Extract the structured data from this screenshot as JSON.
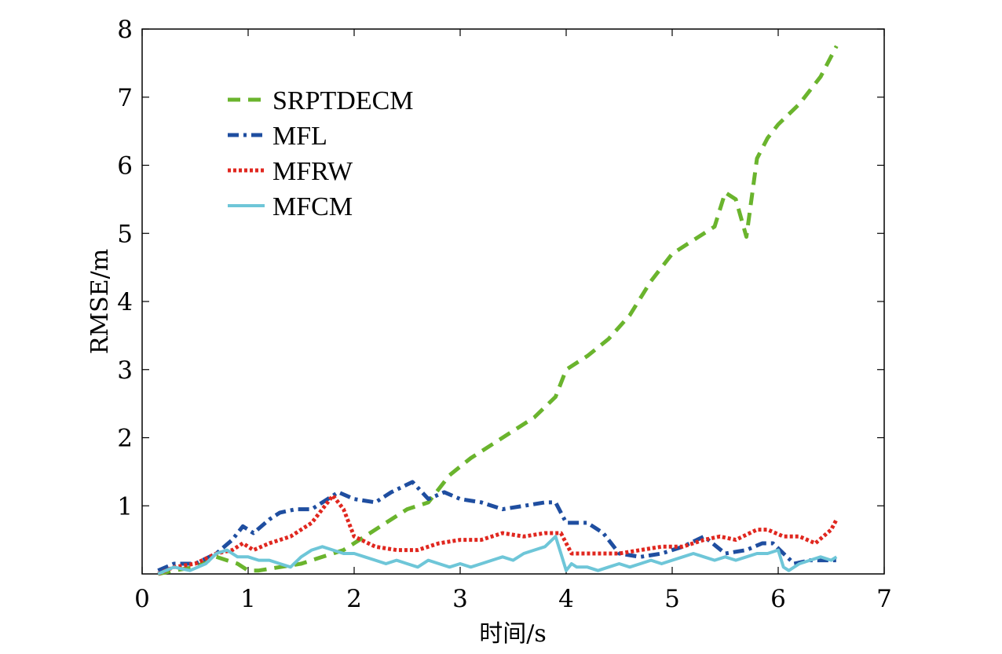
{
  "chart_data": {
    "type": "line",
    "title": "",
    "xlabel": "时间/s",
    "ylabel": "RMSE/m",
    "xlim": [
      0,
      7
    ],
    "ylim": [
      0,
      8
    ],
    "xticks": [
      "0",
      "1",
      "2",
      "3",
      "4",
      "5",
      "6",
      "7"
    ],
    "yticks": [
      "1",
      "2",
      "3",
      "4",
      "5",
      "6",
      "7",
      "8"
    ],
    "grid": false,
    "legend_position": "top-left",
    "series": [
      {
        "name": "SRPTDECM",
        "color": "#6ab42d",
        "dash": "dashed",
        "x": [
          0.15,
          0.3,
          0.5,
          0.7,
          0.9,
          1.0,
          1.1,
          1.3,
          1.5,
          1.7,
          1.9,
          2.1,
          2.3,
          2.5,
          2.7,
          2.9,
          3.1,
          3.3,
          3.5,
          3.7,
          3.9,
          4.0,
          4.2,
          4.4,
          4.6,
          4.8,
          5.0,
          5.2,
          5.4,
          5.5,
          5.6,
          5.7,
          5.8,
          5.9,
          6.0,
          6.2,
          6.4,
          6.55
        ],
        "y": [
          0.0,
          0.05,
          0.1,
          0.25,
          0.15,
          0.05,
          0.05,
          0.1,
          0.15,
          0.25,
          0.35,
          0.55,
          0.75,
          0.95,
          1.05,
          1.45,
          1.7,
          1.9,
          2.1,
          2.3,
          2.6,
          3.0,
          3.2,
          3.45,
          3.8,
          4.3,
          4.7,
          4.9,
          5.1,
          5.6,
          5.5,
          4.95,
          6.1,
          6.4,
          6.6,
          6.9,
          7.3,
          7.75
        ]
      },
      {
        "name": "MFL",
        "color": "#1f4ea0",
        "dash": "dashdot",
        "x": [
          0.15,
          0.3,
          0.5,
          0.7,
          0.85,
          0.95,
          1.05,
          1.2,
          1.3,
          1.45,
          1.6,
          1.75,
          1.85,
          2.0,
          2.2,
          2.35,
          2.55,
          2.7,
          2.85,
          3.0,
          3.2,
          3.4,
          3.6,
          3.8,
          3.9,
          4.0,
          4.2,
          4.35,
          4.5,
          4.7,
          4.9,
          5.1,
          5.3,
          5.5,
          5.7,
          5.85,
          5.95,
          6.05,
          6.15,
          6.3,
          6.55
        ],
        "y": [
          0.05,
          0.15,
          0.15,
          0.3,
          0.5,
          0.7,
          0.6,
          0.8,
          0.9,
          0.95,
          0.95,
          1.1,
          1.2,
          1.1,
          1.05,
          1.2,
          1.35,
          1.1,
          1.2,
          1.1,
          1.05,
          0.95,
          1.0,
          1.05,
          1.05,
          0.75,
          0.75,
          0.6,
          0.3,
          0.25,
          0.3,
          0.4,
          0.55,
          0.3,
          0.35,
          0.45,
          0.45,
          0.3,
          0.15,
          0.2,
          0.2
        ]
      },
      {
        "name": "MFRW",
        "color": "#e0271f",
        "dash": "dotted",
        "x": [
          0.15,
          0.3,
          0.5,
          0.7,
          0.85,
          0.95,
          1.05,
          1.2,
          1.4,
          1.6,
          1.8,
          1.9,
          2.0,
          2.2,
          2.4,
          2.6,
          2.8,
          3.0,
          3.2,
          3.4,
          3.6,
          3.8,
          3.95,
          4.05,
          4.3,
          4.5,
          4.7,
          4.9,
          5.1,
          5.3,
          5.45,
          5.6,
          5.8,
          5.9,
          6.05,
          6.2,
          6.35,
          6.5,
          6.55
        ],
        "y": [
          0.0,
          0.1,
          0.15,
          0.3,
          0.35,
          0.45,
          0.35,
          0.45,
          0.55,
          0.75,
          1.15,
          0.95,
          0.55,
          0.4,
          0.35,
          0.35,
          0.45,
          0.5,
          0.5,
          0.6,
          0.55,
          0.6,
          0.6,
          0.3,
          0.3,
          0.3,
          0.35,
          0.4,
          0.4,
          0.5,
          0.55,
          0.5,
          0.65,
          0.65,
          0.55,
          0.55,
          0.45,
          0.65,
          0.8
        ]
      },
      {
        "name": "MFCM",
        "color": "#6ec6d8",
        "dash": "solid",
        "x": [
          0.15,
          0.3,
          0.45,
          0.6,
          0.7,
          0.8,
          0.9,
          1.0,
          1.1,
          1.2,
          1.3,
          1.4,
          1.5,
          1.6,
          1.7,
          1.8,
          1.9,
          2.0,
          2.1,
          2.2,
          2.3,
          2.4,
          2.5,
          2.6,
          2.7,
          2.8,
          2.9,
          3.0,
          3.1,
          3.2,
          3.3,
          3.4,
          3.5,
          3.6,
          3.7,
          3.8,
          3.9,
          3.95,
          4.0,
          4.05,
          4.1,
          4.2,
          4.3,
          4.4,
          4.5,
          4.6,
          4.7,
          4.8,
          4.9,
          5.0,
          5.1,
          5.2,
          5.3,
          5.4,
          5.5,
          5.6,
          5.7,
          5.8,
          5.9,
          6.0,
          6.05,
          6.1,
          6.2,
          6.3,
          6.4,
          6.5,
          6.55
        ],
        "y": [
          0.0,
          0.1,
          0.05,
          0.15,
          0.3,
          0.35,
          0.25,
          0.25,
          0.2,
          0.2,
          0.15,
          0.1,
          0.25,
          0.35,
          0.4,
          0.35,
          0.3,
          0.3,
          0.25,
          0.2,
          0.15,
          0.2,
          0.15,
          0.1,
          0.2,
          0.15,
          0.1,
          0.15,
          0.1,
          0.15,
          0.2,
          0.25,
          0.2,
          0.3,
          0.35,
          0.4,
          0.55,
          0.3,
          0.05,
          0.15,
          0.1,
          0.1,
          0.05,
          0.1,
          0.15,
          0.1,
          0.15,
          0.2,
          0.15,
          0.2,
          0.25,
          0.3,
          0.25,
          0.2,
          0.25,
          0.2,
          0.25,
          0.3,
          0.3,
          0.35,
          0.1,
          0.05,
          0.15,
          0.2,
          0.25,
          0.2,
          0.25
        ]
      }
    ]
  }
}
